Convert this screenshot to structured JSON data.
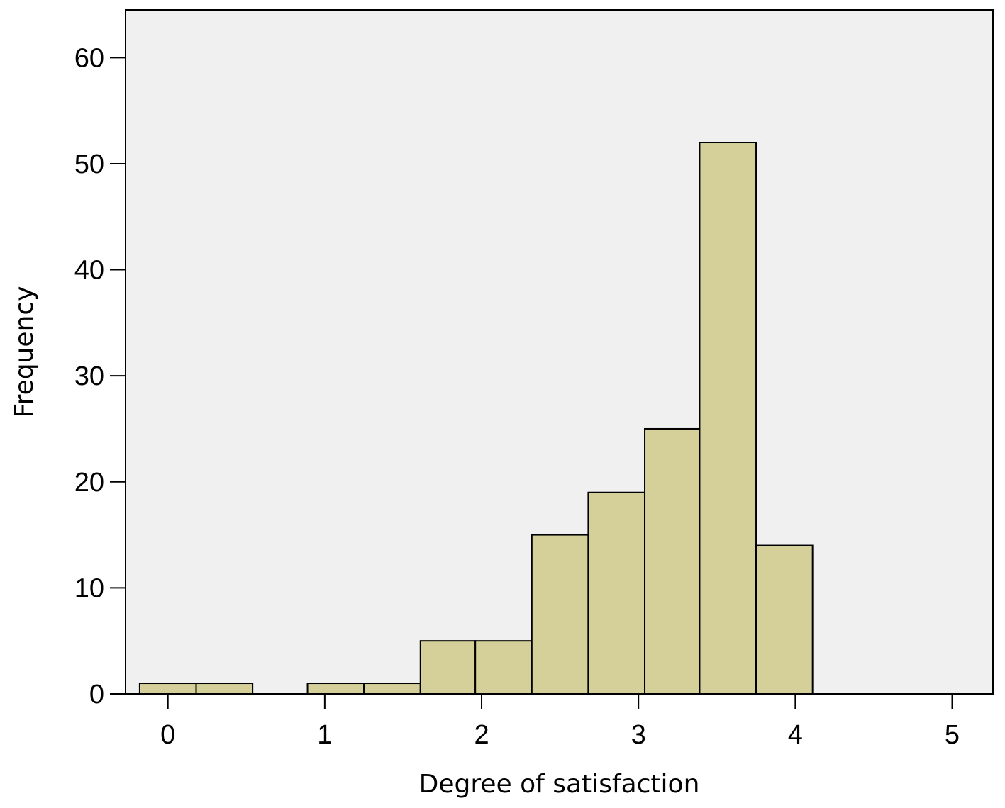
{
  "chart_data": {
    "type": "bar",
    "subtype": "histogram",
    "xlabel": "Degree of satisfaction",
    "ylabel": "Frequency",
    "xlim": [
      -0.27,
      5.26
    ],
    "ylim": [
      0,
      64.5
    ],
    "x_ticks": [
      0,
      1,
      2,
      3,
      4,
      5
    ],
    "y_ticks": [
      0,
      10,
      20,
      30,
      40,
      50,
      60
    ],
    "grid": false,
    "legend": "none",
    "bins": [
      {
        "start": -0.18,
        "end": 0.18,
        "value": 1
      },
      {
        "start": 0.18,
        "end": 0.54,
        "value": 1
      },
      {
        "start": 0.54,
        "end": 0.89,
        "value": 0
      },
      {
        "start": 0.89,
        "end": 1.25,
        "value": 1
      },
      {
        "start": 1.25,
        "end": 1.61,
        "value": 1
      },
      {
        "start": 1.61,
        "end": 1.96,
        "value": 5
      },
      {
        "start": 1.96,
        "end": 2.32,
        "value": 5
      },
      {
        "start": 2.32,
        "end": 2.68,
        "value": 15
      },
      {
        "start": 2.68,
        "end": 3.04,
        "value": 19
      },
      {
        "start": 3.04,
        "end": 3.39,
        "value": 25
      },
      {
        "start": 3.39,
        "end": 3.75,
        "value": 52
      },
      {
        "start": 3.75,
        "end": 4.11,
        "value": 14
      }
    ],
    "colors": {
      "bar_fill": "#d5d09a",
      "bar_stroke": "#000000",
      "plot_background": "#f0f0f0",
      "axis": "#000000"
    }
  }
}
